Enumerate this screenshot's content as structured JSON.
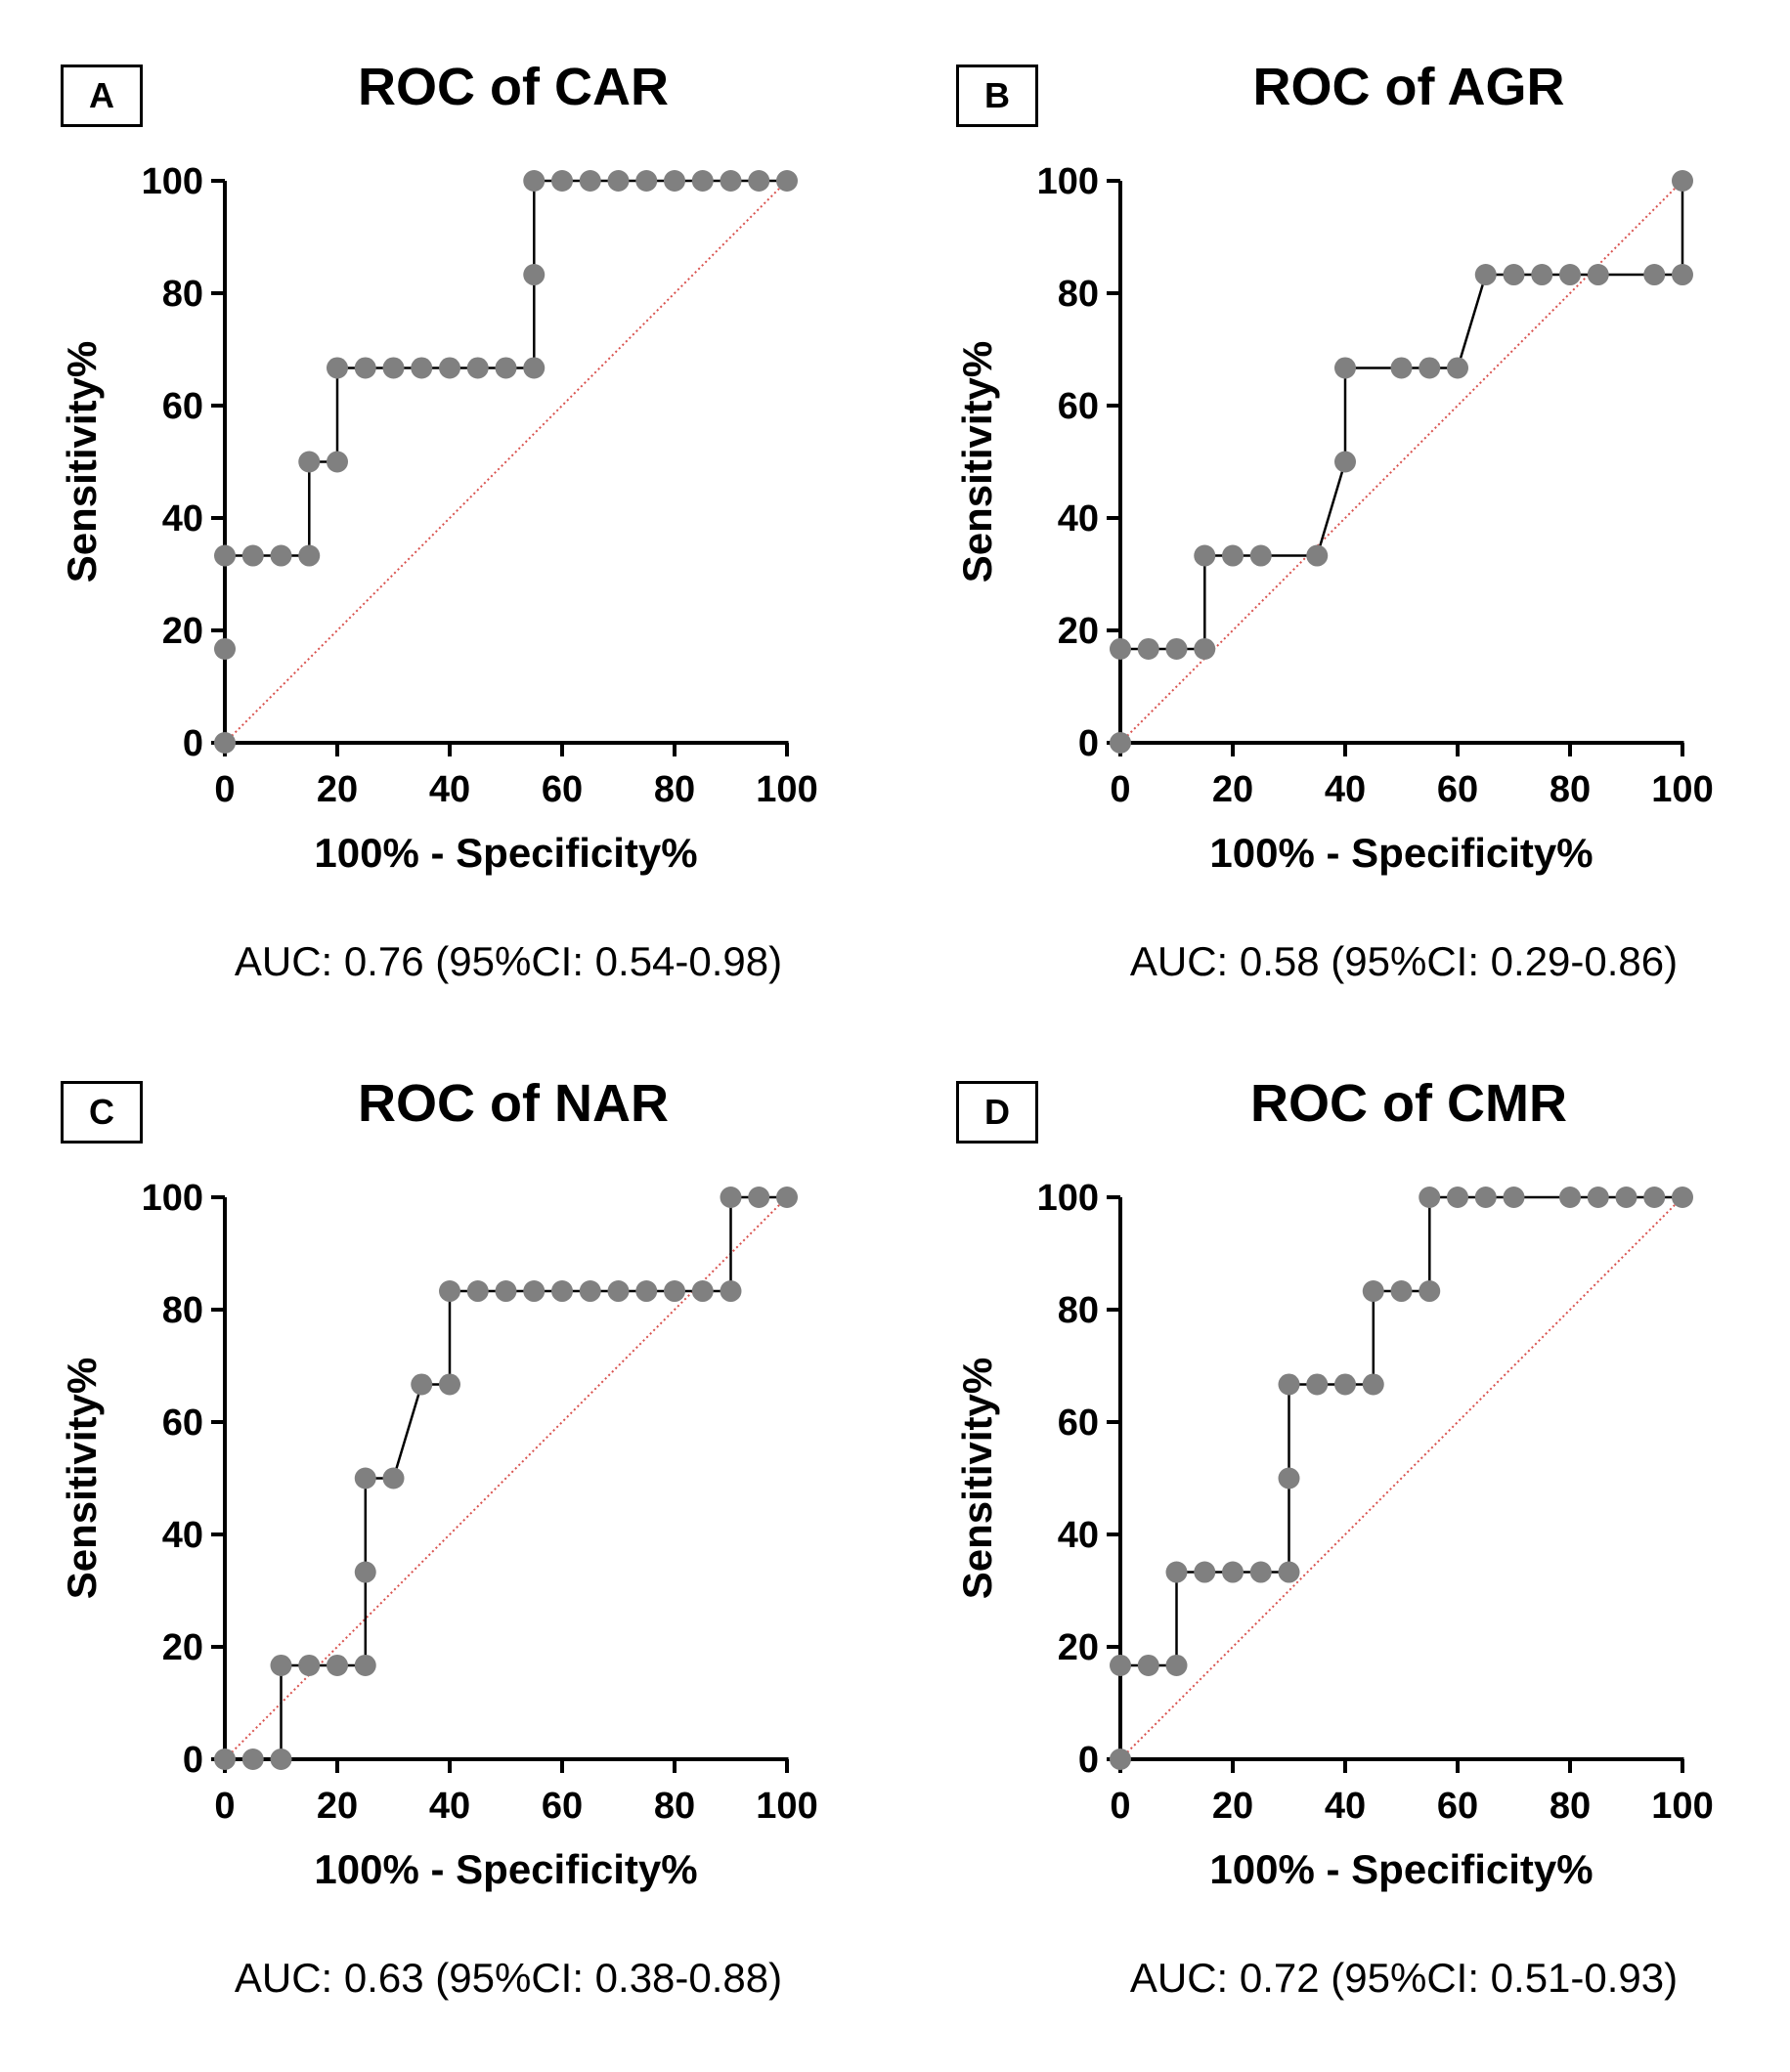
{
  "chart_data": [
    {
      "type": "line",
      "panel_label": "A",
      "title": "ROC of CAR",
      "xlabel": "100% - Specificity%",
      "ylabel": "Sensitivity%",
      "xlim": [
        0,
        100
      ],
      "ylim": [
        0,
        100
      ],
      "xticks": [
        "0",
        "20",
        "40",
        "60",
        "80",
        "100"
      ],
      "yticks": [
        "0",
        "20",
        "40",
        "60",
        "80",
        "100"
      ],
      "auc_text": "AUC: 0.76 (95%CI: 0.54-0.98)",
      "colors": {
        "curve": "#000000",
        "marker": "#808080",
        "reference": "#d9534f"
      },
      "series": [
        {
          "x": [
            0,
            0,
            0,
            5,
            10,
            15,
            15,
            20,
            20,
            25,
            30,
            35,
            40,
            45,
            50,
            55,
            55,
            55,
            60,
            65,
            70,
            75,
            80,
            85,
            90,
            95,
            100
          ],
          "y": [
            0,
            16.7,
            33.3,
            33.3,
            33.3,
            33.3,
            50,
            50,
            66.7,
            66.7,
            66.7,
            66.7,
            66.7,
            66.7,
            66.7,
            66.7,
            83.3,
            100,
            100,
            100,
            100,
            100,
            100,
            100,
            100,
            100,
            100
          ]
        }
      ],
      "reference_line": {
        "x": [
          0,
          100
        ],
        "y": [
          0,
          100
        ]
      }
    },
    {
      "type": "line",
      "panel_label": "B",
      "title": "ROC of AGR",
      "xlabel": "100% - Specificity%",
      "ylabel": "Sensitivity%",
      "xlim": [
        0,
        100
      ],
      "ylim": [
        0,
        100
      ],
      "xticks": [
        "0",
        "20",
        "40",
        "60",
        "80",
        "100"
      ],
      "yticks": [
        "0",
        "20",
        "40",
        "60",
        "80",
        "100"
      ],
      "auc_text": "AUC: 0.58 (95%CI: 0.29-0.86)",
      "colors": {
        "curve": "#000000",
        "marker": "#808080",
        "reference": "#d9534f"
      },
      "series": [
        {
          "x": [
            0,
            0,
            5,
            10,
            15,
            15,
            20,
            25,
            35,
            40,
            40,
            50,
            55,
            60,
            65,
            70,
            75,
            80,
            85,
            95,
            100,
            100
          ],
          "y": [
            0,
            16.7,
            16.7,
            16.7,
            16.7,
            33.3,
            33.3,
            33.3,
            33.3,
            50,
            66.7,
            66.7,
            66.7,
            66.7,
            83.3,
            83.3,
            83.3,
            83.3,
            83.3,
            83.3,
            83.3,
            100
          ]
        }
      ],
      "reference_line": {
        "x": [
          0,
          100
        ],
        "y": [
          0,
          100
        ]
      }
    },
    {
      "type": "line",
      "panel_label": "C",
      "title": "ROC of NAR",
      "xlabel": "100% - Specificity%",
      "ylabel": "Sensitivity%",
      "xlim": [
        0,
        100
      ],
      "ylim": [
        0,
        100
      ],
      "xticks": [
        "0",
        "20",
        "40",
        "60",
        "80",
        "100"
      ],
      "yticks": [
        "0",
        "20",
        "40",
        "60",
        "80",
        "100"
      ],
      "auc_text": "AUC: 0.63 (95%CI: 0.38-0.88)",
      "colors": {
        "curve": "#000000",
        "marker": "#808080",
        "reference": "#d9534f"
      },
      "series": [
        {
          "x": [
            0,
            5,
            10,
            10,
            15,
            20,
            25,
            25,
            25,
            30,
            35,
            40,
            40,
            45,
            50,
            55,
            60,
            65,
            70,
            75,
            80,
            85,
            90,
            90,
            95,
            100
          ],
          "y": [
            0,
            0,
            0,
            16.7,
            16.7,
            16.7,
            16.7,
            33.3,
            50,
            50,
            66.7,
            66.7,
            83.3,
            83.3,
            83.3,
            83.3,
            83.3,
            83.3,
            83.3,
            83.3,
            83.3,
            83.3,
            83.3,
            100,
            100,
            100
          ]
        }
      ],
      "reference_line": {
        "x": [
          0,
          100
        ],
        "y": [
          0,
          100
        ]
      }
    },
    {
      "type": "line",
      "panel_label": "D",
      "title": "ROC of CMR",
      "xlabel": "100% - Specificity%",
      "ylabel": "Sensitivity%",
      "xlim": [
        0,
        100
      ],
      "ylim": [
        0,
        100
      ],
      "xticks": [
        "0",
        "20",
        "40",
        "60",
        "80",
        "100"
      ],
      "yticks": [
        "0",
        "20",
        "40",
        "60",
        "80",
        "100"
      ],
      "auc_text": "AUC: 0.72 (95%CI: 0.51-0.93)",
      "colors": {
        "curve": "#000000",
        "marker": "#808080",
        "reference": "#d9534f"
      },
      "series": [
        {
          "x": [
            0,
            0,
            5,
            10,
            10,
            15,
            20,
            25,
            30,
            30,
            30,
            35,
            40,
            45,
            45,
            50,
            55,
            55,
            60,
            65,
            70,
            80,
            85,
            90,
            95,
            100
          ],
          "y": [
            0,
            16.7,
            16.7,
            16.7,
            33.3,
            33.3,
            33.3,
            33.3,
            33.3,
            50,
            66.7,
            66.7,
            66.7,
            66.7,
            83.3,
            83.3,
            83.3,
            100,
            100,
            100,
            100,
            100,
            100,
            100,
            100,
            100
          ]
        }
      ],
      "reference_line": {
        "x": [
          0,
          100
        ],
        "y": [
          0,
          100
        ]
      }
    }
  ]
}
